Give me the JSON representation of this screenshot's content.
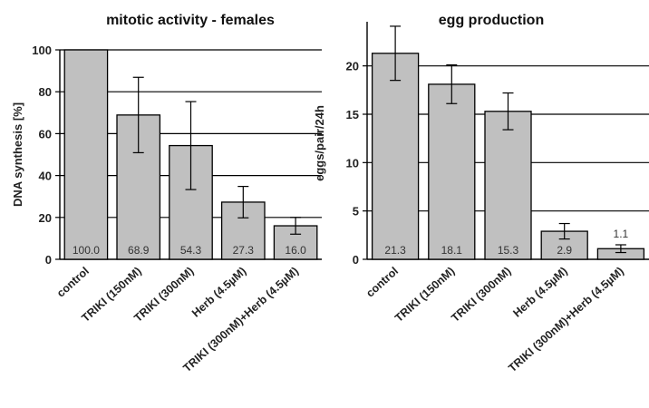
{
  "chart_data": [
    {
      "type": "bar",
      "title": "mitotic activity - females",
      "ylabel": "DNA synthesis [%]",
      "xlabel": "",
      "ylim": [
        0,
        100
      ],
      "yticks": [
        0,
        20,
        40,
        60,
        80,
        100
      ],
      "grid": true,
      "categories": [
        "control",
        "TRIKI (150nM)",
        "TRIKI (300nM)",
        "Herb (4.5µM)",
        "TRIKI (300nM)+Herb (4.5µM)"
      ],
      "values": [
        100.0,
        68.9,
        54.3,
        27.3,
        16.0
      ],
      "error": [
        0,
        18,
        21,
        7.5,
        4
      ],
      "data_labels": [
        "100.0",
        "68.9",
        "54.3",
        "27.3",
        "16.0"
      ],
      "bar_color": "#c0c0c0"
    },
    {
      "type": "bar",
      "title": "egg production",
      "ylabel": "eggs/pair/24h",
      "xlabel": "",
      "ylim": [
        0,
        24
      ],
      "yticks": [
        0,
        5,
        10,
        15,
        20
      ],
      "grid": true,
      "categories": [
        "control",
        "TRIKI (150nM)",
        "TRIKI (300nM)",
        "Herb (4.5µM)",
        "TRIKI (300nM)+Herb (4.5µM)"
      ],
      "values": [
        21.3,
        18.1,
        15.3,
        2.9,
        1.1
      ],
      "error": [
        2.8,
        2.0,
        1.9,
        0.8,
        0.4
      ],
      "data_labels": [
        "21.3",
        "18.1",
        "15.3",
        "2.9",
        "1.1"
      ],
      "bar_color": "#c0c0c0"
    }
  ]
}
